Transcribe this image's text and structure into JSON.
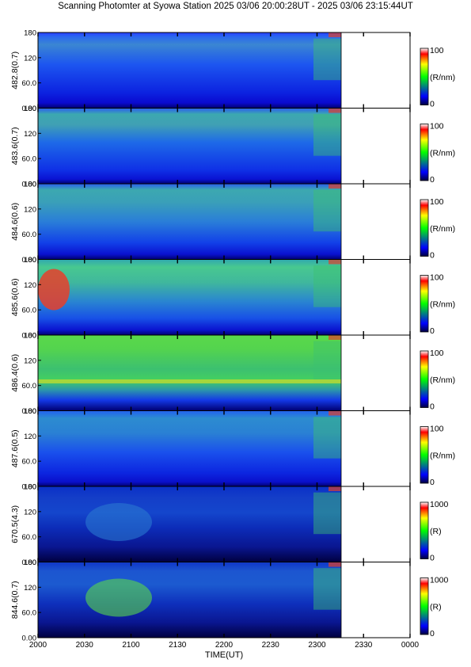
{
  "title": "Scanning Photomter at Syowa Station  2025 03/06 20:00:28UT - 2025 03/06 23:15:44UT",
  "chart_data": {
    "type": "heatmap",
    "title": "Scanning Photomter at Syowa Station  2025 03/06 20:00:28UT - 2025 03/06 23:15:44UT",
    "xlabel": "TIME(UT)",
    "x_ticks": [
      "2000",
      "2030",
      "2100",
      "2130",
      "2200",
      "2230",
      "2300",
      "2330",
      "0000"
    ],
    "data_end_tick_position": "about 2316 UT",
    "y_ticks": [
      "0.00",
      "60.0",
      "120",
      "180"
    ],
    "ylim": [
      0,
      180
    ],
    "colorscale": [
      "#000040",
      "#0000ff",
      "#00ff00",
      "#ffff00",
      "#ff0000",
      "#ffffff"
    ],
    "panels": [
      {
        "ylabel": "482.8(0.7)",
        "cbar_max": "100",
        "cbar_min": "0",
        "cbar_unit": "(R/nm)"
      },
      {
        "ylabel": "483.6(0.7)",
        "cbar_max": "100",
        "cbar_min": "0",
        "cbar_unit": "(R/nm)"
      },
      {
        "ylabel": "484.6(0.6)",
        "cbar_max": "100",
        "cbar_min": "0",
        "cbar_unit": "(R/nm)"
      },
      {
        "ylabel": "485.6(0.6)",
        "cbar_max": "100",
        "cbar_min": "0",
        "cbar_unit": "(R/nm)"
      },
      {
        "ylabel": "486.4(0.6)",
        "cbar_max": "100",
        "cbar_min": "0",
        "cbar_unit": "(R/nm)"
      },
      {
        "ylabel": "487.6(0.5)",
        "cbar_max": "100",
        "cbar_min": "0",
        "cbar_unit": "(R/nm)"
      },
      {
        "ylabel": "670.5(4.3)",
        "cbar_max": "1000",
        "cbar_min": "0",
        "cbar_unit": "(R)"
      },
      {
        "ylabel": "844.6(0.7)",
        "cbar_max": "1000",
        "cbar_min": "0",
        "cbar_unit": "(R)"
      }
    ]
  }
}
